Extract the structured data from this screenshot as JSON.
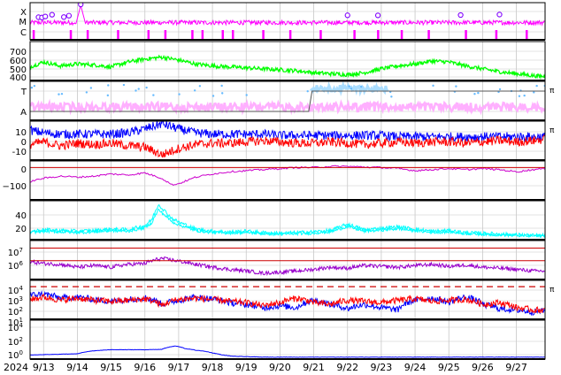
{
  "colors": {
    "xray": "#ff00ff",
    "xray_peak": "#8000ff",
    "proton_green": "#00ff00",
    "flag_light_blue": "#aaddff",
    "flag_blue": "#66bbff",
    "flag_pink": "#ffb0ff",
    "bz_blue": "#0000ff",
    "bz_red": "#ff0000",
    "dst": "#cc00cc",
    "cyan": "#00ffff",
    "purple": "#9900cc",
    "threshold_red": "#cc0000",
    "grid": "#c8c8c8"
  },
  "chart_data": [
    {
      "id": "xray",
      "type": "line",
      "ytick_labels": [
        "X",
        "M",
        "C"
      ],
      "markers": [
        12.85,
        12.95,
        13.05,
        13.25,
        13.6,
        13.75,
        14.1,
        22.0,
        22.9,
        25.35,
        26.5
      ],
      "side_marker": ""
    },
    {
      "id": "speed",
      "type": "line",
      "ytick_labels": [
        "700",
        "600",
        "500",
        "400"
      ],
      "ylim": [
        350,
        750
      ],
      "series": [
        {
          "color_key": "proton_green",
          "x": [
            12.6,
            13.0,
            13.5,
            14.0,
            14.5,
            15.0,
            15.5,
            16.0,
            16.5,
            17.0,
            17.5,
            18.0,
            18.5,
            19.0,
            19.5,
            20.0,
            20.5,
            21.0,
            21.5,
            22.0,
            22.5,
            23.0,
            23.5,
            24.0,
            24.5,
            25.0,
            25.5,
            26.0,
            26.5,
            27.0,
            27.5,
            27.85
          ],
          "values": [
            490,
            540,
            500,
            520,
            510,
            490,
            540,
            570,
            590,
            560,
            520,
            500,
            490,
            480,
            470,
            460,
            450,
            430,
            420,
            410,
            430,
            470,
            500,
            520,
            550,
            540,
            500,
            470,
            440,
            420,
            400,
            390
          ]
        }
      ],
      "side_marker": ""
    },
    {
      "id": "sector",
      "type": "line",
      "ytick_labels": [
        "T",
        "A"
      ],
      "step_x": 20.85,
      "side_marker": "π"
    },
    {
      "id": "bz",
      "type": "line",
      "ytick_labels": [
        "10",
        "0",
        "-10"
      ],
      "ylim": [
        -15,
        15
      ],
      "series": [
        {
          "color_key": "bz_blue",
          "x": [
            12.6,
            13.0,
            13.5,
            14.0,
            14.5,
            15.0,
            15.5,
            16.0,
            16.5,
            17.0,
            17.5,
            18.0,
            18.5,
            19.0,
            19.5,
            20.0,
            20.5,
            21.0,
            21.5,
            22.0,
            22.5,
            23.0,
            23.5,
            24.0,
            24.5,
            25.0,
            25.5,
            26.0,
            26.5,
            27.0,
            27.5,
            27.85
          ],
          "values": [
            8,
            6,
            5,
            5,
            5,
            5,
            6,
            9,
            13,
            9,
            6,
            5,
            5,
            5,
            5,
            4,
            4,
            4,
            4,
            4,
            4,
            4,
            3,
            3,
            3,
            3,
            3,
            3,
            3,
            3,
            3,
            3
          ]
        },
        {
          "color_key": "bz_red",
          "x": [
            12.6,
            13.0,
            13.5,
            14.0,
            14.5,
            15.0,
            15.5,
            16.0,
            16.5,
            17.0,
            17.5,
            18.0,
            18.5,
            19.0,
            19.5,
            20.0,
            20.5,
            21.0,
            21.5,
            22.0,
            22.5,
            23.0,
            23.5,
            24.0,
            24.5,
            25.0,
            25.5,
            26.0,
            26.5,
            27.0,
            27.5,
            27.85
          ],
          "values": [
            -3,
            -1,
            -4,
            -2,
            -3,
            -2,
            -4,
            -5,
            -11,
            -6,
            -3,
            -2,
            -2,
            -1,
            0,
            -1,
            -2,
            -2,
            -1,
            -2,
            -3,
            -2,
            -1,
            -2,
            -1,
            -1,
            -2,
            -1,
            0,
            -1,
            0,
            1
          ]
        }
      ],
      "side_marker": "π"
    },
    {
      "id": "dst",
      "type": "line",
      "ytick_labels": [
        "0",
        "−100"
      ],
      "ylim": [
        -150,
        30
      ],
      "series": [
        {
          "color_key": "dst",
          "x": [
            12.6,
            13.0,
            13.5,
            14.0,
            14.5,
            15.0,
            15.5,
            16.0,
            16.5,
            16.8,
            17.0,
            17.5,
            18.0,
            18.5,
            19.0,
            19.5,
            20.0,
            20.5,
            21.0,
            21.5,
            22.0,
            22.5,
            23.0,
            23.5,
            24.0,
            24.5,
            25.0,
            25.5,
            26.0,
            26.5,
            27.0,
            27.5,
            27.85
          ],
          "values": [
            -65,
            -50,
            -40,
            -45,
            -40,
            -30,
            -35,
            -25,
            -50,
            -80,
            -75,
            -45,
            -30,
            -20,
            -15,
            -10,
            -5,
            0,
            0,
            5,
            5,
            2,
            0,
            -5,
            -15,
            -10,
            -5,
            -10,
            -5,
            -10,
            -20,
            -10,
            -5
          ]
        }
      ],
      "side_marker": ""
    },
    {
      "id": "cyan",
      "type": "line",
      "ytick_labels": [
        "40",
        "20"
      ],
      "ylim": [
        0,
        55
      ],
      "series": [
        {
          "color_key": "cyan",
          "x": [
            12.6,
            13.0,
            13.5,
            14.0,
            14.5,
            15.0,
            15.5,
            16.0,
            16.2,
            16.4,
            16.6,
            16.8,
            17.0,
            17.5,
            18.0,
            18.5,
            19.0,
            19.5,
            20.0,
            20.5,
            21.0,
            21.5,
            22.0,
            22.5,
            23.0,
            23.5,
            24.0,
            24.5,
            25.0,
            25.5,
            26.0,
            26.5,
            27.0,
            27.5,
            27.85
          ],
          "values": [
            12,
            14,
            13,
            12,
            13,
            15,
            14,
            20,
            28,
            50,
            40,
            30,
            25,
            15,
            12,
            11,
            12,
            10,
            9,
            10,
            11,
            13,
            22,
            14,
            16,
            18,
            15,
            12,
            13,
            10,
            9,
            8,
            7,
            6,
            6
          ]
        }
      ],
      "side_marker": ""
    },
    {
      "id": "electrons",
      "type": "line",
      "ytick_labels": [
        "10^7",
        "10^6"
      ],
      "thresholds": [
        10000000,
        1000000
      ],
      "series": [
        {
          "color_key": "purple",
          "x": [
            12.6,
            13.0,
            13.5,
            14.0,
            14.5,
            15.0,
            15.5,
            16.0,
            16.5,
            17.0,
            17.5,
            18.0,
            18.5,
            19.0,
            19.5,
            20.0,
            20.5,
            21.0,
            21.5,
            22.0,
            22.5,
            23.0,
            23.5,
            24.0,
            24.5,
            25.0,
            25.5,
            26.0,
            26.5,
            27.0,
            27.5,
            27.85
          ],
          "values": [
            800000,
            600000,
            500000,
            300000,
            400000,
            300000,
            500000,
            600000,
            1500000,
            900000,
            500000,
            300000,
            200000,
            150000,
            100000,
            120000,
            150000,
            200000,
            300000,
            250000,
            400000,
            350000,
            300000,
            400000,
            500000,
            350000,
            450000,
            300000,
            250000,
            200000,
            150000,
            150000
          ]
        }
      ],
      "side_marker": ""
    },
    {
      "id": "protons",
      "type": "line",
      "ytick_labels": [
        "10^4",
        "10^3",
        "10^2",
        "10^1"
      ],
      "threshold": 10000,
      "series": [
        {
          "color_key": "bz_blue",
          "x": [
            12.6,
            13.0,
            13.5,
            14.0,
            14.5,
            15.0,
            15.5,
            16.0,
            16.5,
            17.0,
            17.5,
            18.0,
            18.5,
            19.0,
            19.5,
            20.0,
            20.5,
            21.0,
            21.5,
            22.0,
            22.5,
            23.0,
            23.5,
            24.0,
            24.5,
            25.0,
            25.5,
            26.0,
            26.5,
            27.0,
            27.5,
            27.85
          ],
          "values": [
            1500,
            2000,
            800,
            1000,
            600,
            400,
            600,
            900,
            200,
            500,
            1000,
            700,
            300,
            200,
            100,
            150,
            100,
            500,
            200,
            80,
            200,
            100,
            60,
            500,
            800,
            300,
            1000,
            200,
            80,
            60,
            40,
            50
          ]
        },
        {
          "color_key": "bz_red",
          "x": [
            12.6,
            13.0,
            13.5,
            14.0,
            14.5,
            15.0,
            15.5,
            16.0,
            16.5,
            17.0,
            17.5,
            18.0,
            18.5,
            19.0,
            19.5,
            20.0,
            20.5,
            21.0,
            21.5,
            22.0,
            22.5,
            23.0,
            23.5,
            24.0,
            24.5,
            25.0,
            25.5,
            26.0,
            26.5,
            27.0,
            27.5,
            27.85
          ],
          "values": [
            600,
            1000,
            500,
            800,
            500,
            400,
            500,
            700,
            150,
            600,
            800,
            600,
            400,
            300,
            150,
            300,
            800,
            300,
            200,
            500,
            400,
            300,
            500,
            700,
            400,
            500,
            600,
            200,
            300,
            100,
            60,
            60
          ]
        }
      ],
      "side_marker": "π"
    },
    {
      "id": "high_energy",
      "type": "line",
      "ytick_labels": [
        "10^4",
        "10^2",
        "10^0"
      ],
      "series": [
        {
          "color_key": "bz_blue",
          "x": [
            12.6,
            13.0,
            13.5,
            14.0,
            14.5,
            15.0,
            15.5,
            16.0,
            16.5,
            16.9,
            17.2,
            17.5,
            17.8,
            18.0,
            18.3,
            18.6,
            19.0,
            19.5,
            20.0,
            21.0,
            22.0,
            23.0,
            24.0,
            25.0,
            26.0,
            27.0,
            27.85
          ],
          "values": [
            0.6,
            0.7,
            0.8,
            0.9,
            2.5,
            3.5,
            3.5,
            3.5,
            4,
            12,
            5,
            3,
            2,
            1.2,
            0.6,
            0.4,
            0.35,
            0.3,
            0.3,
            0.3,
            0.3,
            0.3,
            0.3,
            0.3,
            0.3,
            0.3,
            0.3
          ]
        }
      ],
      "side_marker": ""
    }
  ],
  "x_axis": {
    "year_label": "2024",
    "tick_labels": [
      "9/13",
      "9/14",
      "9/15",
      "9/16",
      "9/17",
      "9/18",
      "9/19",
      "9/20",
      "9/21",
      "9/22",
      "9/23",
      "9/24",
      "9/25",
      "9/26",
      "9/27"
    ],
    "tick_values": [
      13,
      14,
      15,
      16,
      17,
      18,
      19,
      20,
      21,
      22,
      23,
      24,
      25,
      26,
      27
    ],
    "xlim": [
      12.6,
      27.85
    ],
    "grid": true
  }
}
